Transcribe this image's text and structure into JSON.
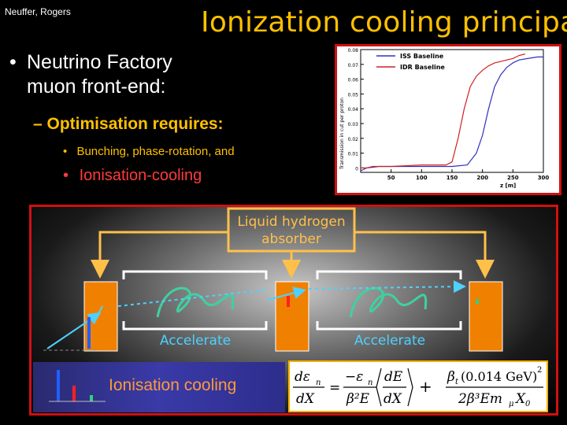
{
  "slide": {
    "author": "Neuffer, Rogers",
    "title": "Ionization cooling principal:",
    "bullet1": "Neutrino Factory muon front-end:",
    "bullet2": "– Optimisation requires:",
    "bullet3": "Bunching, phase-rotation, and",
    "bullet4": "Ionisation-cooling",
    "bullet_dot": "•"
  },
  "chart_data": {
    "type": "line",
    "xlabel": "z [m]",
    "ylabel": "Transmission in cut per proton",
    "xlim": [
      0,
      300
    ],
    "ylim": [
      -0.003,
      0.08
    ],
    "xticks": [
      "50",
      "100",
      "150",
      "200",
      "250",
      "300"
    ],
    "yticks": [
      "0",
      "0.01",
      "0.02",
      "0.03",
      "0.04",
      "0.05",
      "0.06",
      "0.07",
      "0.08"
    ],
    "series": [
      {
        "name": "ISS Baseline",
        "color": "#3030c0",
        "x": [
          0,
          10,
          30,
          60,
          100,
          150,
          175,
          190,
          200,
          210,
          220,
          230,
          240,
          250,
          260,
          275,
          290,
          300
        ],
        "y": [
          -0.002,
          0.0,
          0.001,
          0.001,
          0.001,
          0.001,
          0.002,
          0.01,
          0.022,
          0.04,
          0.055,
          0.063,
          0.068,
          0.071,
          0.073,
          0.074,
          0.075,
          0.075
        ]
      },
      {
        "name": "IDR Baseline",
        "color": "#d02020",
        "x": [
          0,
          10,
          20,
          50,
          100,
          140,
          150,
          160,
          170,
          180,
          190,
          200,
          210,
          220,
          230,
          240,
          250,
          260,
          270
        ],
        "y": [
          0.0,
          0.0,
          0.001,
          0.001,
          0.002,
          0.002,
          0.004,
          0.02,
          0.04,
          0.055,
          0.062,
          0.066,
          0.069,
          0.071,
          0.072,
          0.073,
          0.074,
          0.076,
          0.077
        ]
      }
    ]
  },
  "diagram": {
    "absorber_label": "Liquid hydrogen absorber",
    "absorber_label_line1": "Liquid hydrogen",
    "absorber_label_line2": "absorber",
    "accelerate_left": "Accelerate",
    "accelerate_right": "Accelerate",
    "ionisation_label": "Ionisation cooling",
    "colors": {
      "absorber": "#f08000",
      "frame": "#ffc04a",
      "bar_blue": "#2060ff",
      "bar_red": "#ff2020",
      "bar_green": "#30d080"
    }
  },
  "formula": {
    "d": "d",
    "eps_n": "ε",
    "sub_n": "n",
    "dX": "dX",
    "minus_eps_n": "−ε",
    "beta2E": "β²E",
    "dE": "dE",
    "plus": "+",
    "beta_t": "β",
    "sub_t": "t",
    "gev": "(0.014 GeV)",
    "sq": "2",
    "den": "2β³Em",
    "mu": "μ",
    "X0": "X",
    "sub_0": "0",
    "eq": "="
  }
}
